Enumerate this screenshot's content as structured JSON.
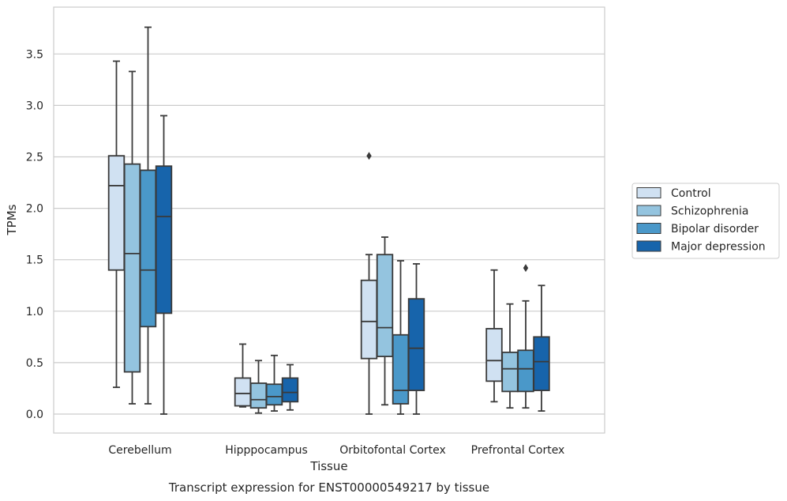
{
  "chart_data": {
    "type": "box",
    "xlabel": "Tissue",
    "ylabel": "TPMs",
    "caption": "Transcript expression for ENST00000549217 by tissue",
    "ylim": [
      -0.18,
      3.9
    ],
    "yticks": [
      "0.0",
      "0.5",
      "1.0",
      "1.5",
      "2.0",
      "2.5",
      "3.0",
      "3.5"
    ],
    "ytick_values": [
      0.0,
      0.5,
      1.0,
      1.5,
      2.0,
      2.5,
      3.0,
      3.5
    ],
    "grid": true,
    "legend_position": "outside-right",
    "categories": [
      "Cerebellum",
      "Hipppocampus",
      "Orbitofontal Cortex",
      "Prefrontal Cortex"
    ],
    "series": [
      {
        "name": "Control",
        "color": "#d0e1f2",
        "boxes": [
          {
            "whislo": 0.26,
            "q1": 1.4,
            "med": 2.22,
            "q3": 2.51,
            "whishi": 3.43,
            "fliers": []
          },
          {
            "whislo": 0.07,
            "q1": 0.08,
            "med": 0.2,
            "q3": 0.35,
            "whishi": 0.68,
            "fliers": []
          },
          {
            "whislo": 0.0,
            "q1": 0.54,
            "med": 0.9,
            "q3": 1.3,
            "whishi": 1.55,
            "fliers": [
              2.51
            ]
          },
          {
            "whislo": 0.12,
            "q1": 0.32,
            "med": 0.52,
            "q3": 0.83,
            "whishi": 1.4,
            "fliers": []
          }
        ]
      },
      {
        "name": "Schizophrenia",
        "color": "#94c4df",
        "boxes": [
          {
            "whislo": 0.1,
            "q1": 0.41,
            "med": 1.56,
            "q3": 2.43,
            "whishi": 3.33,
            "fliers": []
          },
          {
            "whislo": 0.01,
            "q1": 0.06,
            "med": 0.14,
            "q3": 0.3,
            "whishi": 0.52,
            "fliers": []
          },
          {
            "whislo": 0.09,
            "q1": 0.56,
            "med": 0.84,
            "q3": 1.55,
            "whishi": 1.72,
            "fliers": []
          },
          {
            "whislo": 0.06,
            "q1": 0.22,
            "med": 0.44,
            "q3": 0.6,
            "whishi": 1.07,
            "fliers": []
          }
        ]
      },
      {
        "name": "Bipolar disorder",
        "color": "#4a98c9",
        "boxes": [
          {
            "whislo": 0.1,
            "q1": 0.85,
            "med": 1.4,
            "q3": 2.37,
            "whishi": 3.76,
            "fliers": []
          },
          {
            "whislo": 0.03,
            "q1": 0.09,
            "med": 0.17,
            "q3": 0.29,
            "whishi": 0.57,
            "fliers": []
          },
          {
            "whislo": 0.0,
            "q1": 0.1,
            "med": 0.23,
            "q3": 0.77,
            "whishi": 1.49,
            "fliers": []
          },
          {
            "whislo": 0.06,
            "q1": 0.22,
            "med": 0.44,
            "q3": 0.62,
            "whishi": 1.1,
            "fliers": [
              1.42
            ]
          }
        ]
      },
      {
        "name": "Major depression",
        "color": "#1764ab",
        "boxes": [
          {
            "whislo": 0.0,
            "q1": 0.98,
            "med": 1.92,
            "q3": 2.41,
            "whishi": 2.9,
            "fliers": []
          },
          {
            "whislo": 0.04,
            "q1": 0.12,
            "med": 0.21,
            "q3": 0.35,
            "whishi": 0.48,
            "fliers": []
          },
          {
            "whislo": 0.0,
            "q1": 0.23,
            "med": 0.64,
            "q3": 1.12,
            "whishi": 1.46,
            "fliers": []
          },
          {
            "whislo": 0.03,
            "q1": 0.23,
            "med": 0.51,
            "q3": 0.75,
            "whishi": 1.25,
            "fliers": []
          }
        ]
      }
    ]
  }
}
